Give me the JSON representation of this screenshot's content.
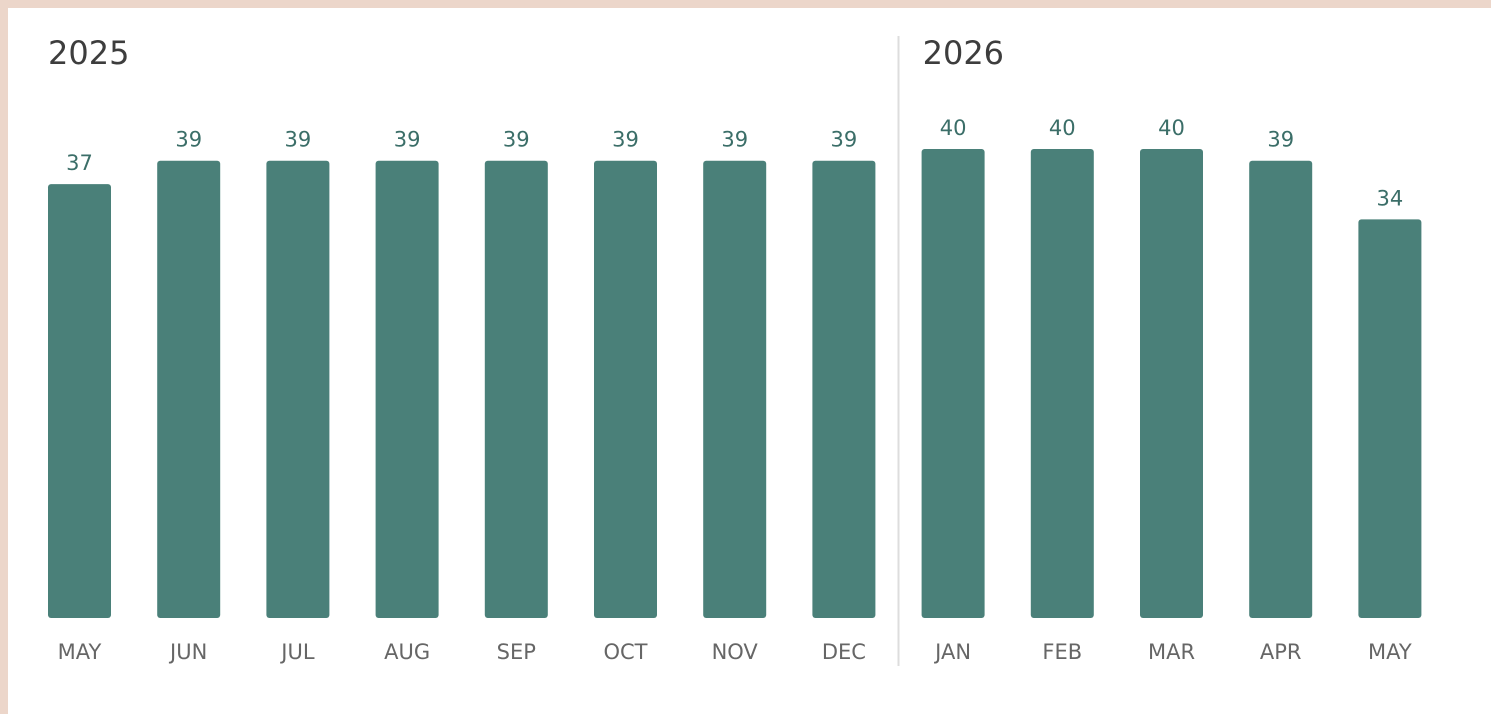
{
  "chart_data": {
    "type": "bar",
    "color": "#4a8079",
    "groups": [
      {
        "label": "2025",
        "categories": [
          "MAY",
          "JUN",
          "JUL",
          "AUG",
          "SEP",
          "OCT",
          "NOV",
          "DEC"
        ],
        "values": [
          37,
          39,
          39,
          39,
          39,
          39,
          39,
          39
        ]
      },
      {
        "label": "2026",
        "categories": [
          "JAN",
          "FEB",
          "MAR",
          "APR",
          "MAY"
        ],
        "values": [
          40,
          40,
          40,
          39,
          34
        ]
      }
    ]
  }
}
